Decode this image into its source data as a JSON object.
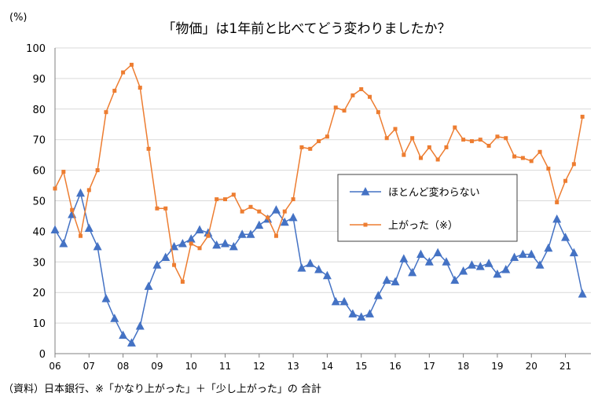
{
  "chart_data": {
    "type": "line",
    "title": "「物価」は1年前と比べてどう変わりましたか？",
    "ylabel": "(%)",
    "xlabel": "",
    "ylim": [
      0,
      100
    ],
    "yticks": [
      0,
      10,
      20,
      30,
      40,
      50,
      60,
      70,
      80,
      90,
      100
    ],
    "xrange": [
      2006,
      2021.75
    ],
    "xticks": [
      {
        "x": 2006,
        "label": "06"
      },
      {
        "x": 2007,
        "label": "07"
      },
      {
        "x": 2008,
        "label": "08"
      },
      {
        "x": 2009,
        "label": "09"
      },
      {
        "x": 2010,
        "label": "10"
      },
      {
        "x": 2011,
        "label": "11"
      },
      {
        "x": 2012,
        "label": "12"
      },
      {
        "x": 2013,
        "label": "13"
      },
      {
        "x": 2014,
        "label": "14"
      },
      {
        "x": 2015,
        "label": "15"
      },
      {
        "x": 2016,
        "label": "16"
      },
      {
        "x": 2017,
        "label": "17"
      },
      {
        "x": 2018,
        "label": "18"
      },
      {
        "x": 2019,
        "label": "19"
      },
      {
        "x": 2020,
        "label": "20"
      },
      {
        "x": 2021,
        "label": "21"
      }
    ],
    "grid": true,
    "legend": "center-right",
    "x": [
      2006.0,
      2006.25,
      2006.5,
      2006.75,
      2007.0,
      2007.25,
      2007.5,
      2007.75,
      2008.0,
      2008.25,
      2008.5,
      2008.75,
      2009.0,
      2009.25,
      2009.5,
      2009.75,
      2010.0,
      2010.25,
      2010.5,
      2010.75,
      2011.0,
      2011.25,
      2011.5,
      2011.75,
      2012.0,
      2012.25,
      2012.5,
      2012.75,
      2013.0,
      2013.25,
      2013.5,
      2013.75,
      2014.0,
      2014.25,
      2014.5,
      2014.75,
      2015.0,
      2015.25,
      2015.5,
      2015.75,
      2016.0,
      2016.25,
      2016.5,
      2016.75,
      2017.0,
      2017.25,
      2017.5,
      2017.75,
      2018.0,
      2018.25,
      2018.5,
      2018.75,
      2019.0,
      2019.25,
      2019.5,
      2019.75,
      2020.0,
      2020.25,
      2020.5,
      2020.75,
      2021.0,
      2021.25,
      2021.5
    ],
    "series": [
      {
        "name": "ほとんど変わらない",
        "color": "#4472C4",
        "marker": "triangle",
        "values": [
          40.5,
          36.0,
          45.5,
          52.5,
          41.0,
          35.0,
          18.0,
          11.5,
          6.0,
          3.5,
          9.0,
          22.0,
          29.0,
          31.5,
          35.0,
          36.0,
          37.5,
          40.5,
          39.5,
          35.5,
          36.0,
          35.0,
          39.0,
          39.0,
          42.0,
          44.0,
          47.0,
          43.0,
          44.5,
          28.0,
          29.5,
          27.5,
          25.5,
          17.0,
          17.0,
          13.0,
          12.0,
          13.0,
          19.0,
          24.0,
          23.5,
          31.0,
          26.5,
          32.5,
          30.0,
          33.0,
          30.0,
          24.0,
          27.0,
          29.0,
          28.5,
          29.5,
          26.0,
          27.5,
          31.5,
          32.5,
          32.5,
          29.0,
          34.5,
          44.0,
          38.0,
          33.0,
          19.5
        ]
      },
      {
        "name": "上がった（※）",
        "color": "#ED7D31",
        "marker": "square",
        "values": [
          54.0,
          59.5,
          47.0,
          38.5,
          53.5,
          60.0,
          79.0,
          86.0,
          92.0,
          94.5,
          87.0,
          67.0,
          47.5,
          47.5,
          29.0,
          23.5,
          36.0,
          34.5,
          38.5,
          50.5,
          50.5,
          52.0,
          46.5,
          48.0,
          46.5,
          44.5,
          38.5,
          46.5,
          50.5,
          67.5,
          67.0,
          69.5,
          71.0,
          80.5,
          79.5,
          84.5,
          86.5,
          84.0,
          79.0,
          70.5,
          73.5,
          65.0,
          70.5,
          64.0,
          67.5,
          63.5,
          67.5,
          74.0,
          70.0,
          69.5,
          70.0,
          68.0,
          71.0,
          70.5,
          64.5,
          64.0,
          63.0,
          66.0,
          60.5,
          49.5,
          56.5,
          62.0,
          77.5
        ]
      }
    ]
  },
  "footnote": "（資料）日本銀行、※「かなり上がった」＋「少し上がった」の 合計"
}
